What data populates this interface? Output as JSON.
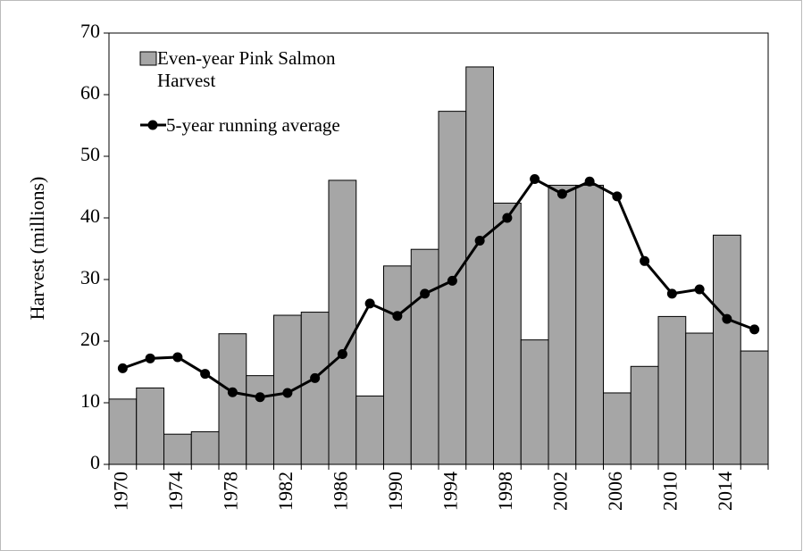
{
  "chart_data": {
    "type": "bar",
    "y_label": "Harvest (millions)",
    "categories": [
      "1970",
      null,
      "1974",
      null,
      "1978",
      null,
      "1982",
      null,
      "1986",
      null,
      "1990",
      null,
      "1994",
      null,
      "1998",
      null,
      "2002",
      null,
      "2006",
      null,
      "2010",
      null,
      "2014",
      null
    ],
    "series": [
      {
        "name": "Even-year Pink Salmon Harvest",
        "type": "bar",
        "color": "#a6a6a6",
        "values": [
          10.6,
          12.4,
          4.9,
          5.3,
          21.2,
          14.4,
          24.2,
          24.7,
          46.1,
          11.1,
          32.2,
          34.9,
          57.3,
          64.5,
          42.4,
          20.2,
          45.3,
          45.3,
          11.6,
          15.9,
          24.0,
          21.3,
          37.2,
          18.4
        ]
      },
      {
        "name": "5-year running average",
        "type": "line",
        "color": "#000000",
        "values": [
          15.6,
          17.2,
          17.4,
          14.7,
          11.7,
          10.9,
          11.6,
          14.0,
          17.9,
          26.1,
          24.1,
          27.7,
          29.8,
          36.3,
          40.0,
          46.3,
          43.9,
          45.9,
          43.5,
          33.0,
          27.7,
          28.4,
          23.6,
          21.9
        ]
      }
    ],
    "ylim": [
      0,
      70
    ],
    "yticks": [
      0,
      10,
      20,
      30,
      40,
      50,
      60,
      70
    ],
    "grid": false
  }
}
